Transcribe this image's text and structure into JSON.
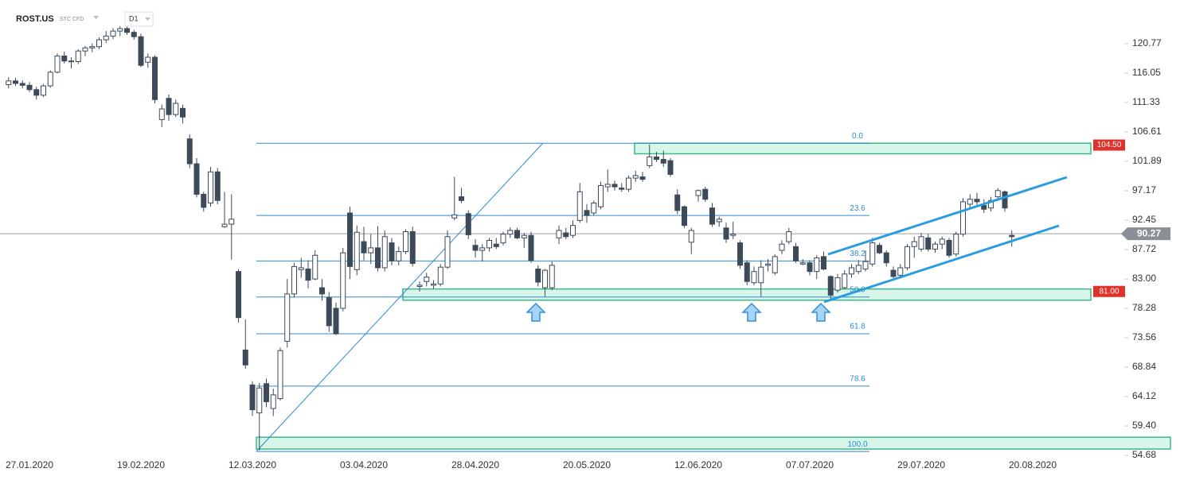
{
  "chart_data": {
    "type": "candlestick",
    "title": "ROST.US",
    "subtitle": "STC CFD",
    "timeframe": "D1",
    "ylim": [
      54.43,
      127.79
    ],
    "yticks": [
      120.77,
      116.05,
      111.33,
      106.61,
      101.89,
      97.17,
      92.45,
      87.72,
      {
        "value": 83,
        "label": "83.00"
      },
      78.28,
      73.56,
      68.84,
      64.12,
      {
        "value": 59.4,
        "label": "59.40"
      },
      54.68
    ],
    "last_price": 90.27,
    "categories": [
      null,
      null,
      null,
      "27.01.2020",
      null,
      null,
      null,
      null,
      null,
      null,
      null,
      null,
      null,
      null,
      null,
      null,
      null,
      null,
      null,
      "19.02.2020",
      null,
      null,
      null,
      null,
      null,
      null,
      null,
      null,
      null,
      null,
      null,
      null,
      null,
      null,
      null,
      "12.03.2020",
      null,
      null,
      null,
      null,
      null,
      null,
      null,
      null,
      null,
      null,
      null,
      null,
      null,
      null,
      null,
      "03.04.2020",
      null,
      null,
      null,
      null,
      null,
      null,
      null,
      null,
      null,
      null,
      null,
      null,
      null,
      null,
      null,
      "28.04.2020",
      null,
      null,
      null,
      null,
      null,
      null,
      null,
      null,
      null,
      null,
      null,
      null,
      null,
      null,
      null,
      "20.05.2020",
      null,
      null,
      null,
      null,
      null,
      null,
      null,
      null,
      null,
      null,
      null,
      null,
      null,
      null,
      null,
      "12.06.2020",
      null,
      null,
      null,
      null,
      null,
      null,
      null,
      null,
      null,
      null,
      null,
      null,
      null,
      null,
      null,
      "07.07.2020",
      null,
      null,
      null,
      null,
      null,
      null,
      null,
      null,
      null,
      null,
      null,
      null,
      null,
      null,
      null,
      "29.07.2020",
      null,
      null,
      null,
      null,
      null,
      null,
      null,
      null,
      null,
      null,
      null,
      null,
      null,
      null,
      null,
      "20.08.2020",
      null
    ],
    "ohlc": [
      [
        114.2,
        115.4,
        113.6,
        114.8
      ],
      [
        114.8,
        115.3,
        114.0,
        114.4
      ],
      [
        114.4,
        114.9,
        113.6,
        114.1
      ],
      [
        114.1,
        114.6,
        113.0,
        113.4
      ],
      [
        113.4,
        113.9,
        111.8,
        112.5
      ],
      [
        112.5,
        114.3,
        112.2,
        114.0
      ],
      [
        114.0,
        116.5,
        113.7,
        116.2
      ],
      [
        116.2,
        119.2,
        116.0,
        118.8
      ],
      [
        118.8,
        119.5,
        117.6,
        118.0
      ],
      [
        118.0,
        118.6,
        116.8,
        117.9
      ],
      [
        117.9,
        119.9,
        117.5,
        119.6
      ],
      [
        119.6,
        120.4,
        118.8,
        120.1
      ],
      [
        120.1,
        120.8,
        119.4,
        120.3
      ],
      [
        120.3,
        121.8,
        119.9,
        121.4
      ],
      [
        121.4,
        122.8,
        120.9,
        122.0
      ],
      [
        122.0,
        123.3,
        121.5,
        122.8
      ],
      [
        122.8,
        123.6,
        122.0,
        123.2
      ],
      [
        123.2,
        123.6,
        122.2,
        122.6
      ],
      [
        122.6,
        123.0,
        121.4,
        121.9
      ],
      [
        121.9,
        122.4,
        117.0,
        117.3
      ],
      [
        117.8,
        119.2,
        116.9,
        118.6
      ],
      [
        118.6,
        118.9,
        111.2,
        111.8
      ],
      [
        108.6,
        111.0,
        107.4,
        110.3
      ],
      [
        112.0,
        112.6,
        108.4,
        109.4
      ],
      [
        109.4,
        111.8,
        109.0,
        111.2
      ],
      [
        110.4,
        111.0,
        108.0,
        109.0
      ],
      [
        105.5,
        106.2,
        100.8,
        101.5
      ],
      [
        101.5,
        102.4,
        96.1,
        96.6
      ],
      [
        96.6,
        97.0,
        93.8,
        94.5
      ],
      [
        95.2,
        101.0,
        94.6,
        100.2
      ],
      [
        100.2,
        100.8,
        95.0,
        95.6
      ],
      [
        91.4,
        97.0,
        91.2,
        91.8
      ],
      [
        91.8,
        96.6,
        86.1,
        92.6
      ],
      [
        84.2,
        84.6,
        76.0,
        76.8
      ],
      [
        71.6,
        76.5,
        68.6,
        69.2
      ],
      [
        66.0,
        66.6,
        61.0,
        62.0
      ],
      [
        61.5,
        66.3,
        55.5,
        65.5
      ],
      [
        66.2,
        67.0,
        62.4,
        63.3
      ],
      [
        62.2,
        65.4,
        61.0,
        64.4
      ],
      [
        63.8,
        72.0,
        63.5,
        71.5
      ],
      [
        73.0,
        83.0,
        72.0,
        80.6
      ],
      [
        80.6,
        85.6,
        80.0,
        85.0
      ],
      [
        84.5,
        86.4,
        83.2,
        84.8
      ],
      [
        84.6,
        86.0,
        81.5,
        82.8
      ],
      [
        83.0,
        87.6,
        82.8,
        86.8
      ],
      [
        81.6,
        83.0,
        79.5,
        80.6
      ],
      [
        80.0,
        80.9,
        74.5,
        75.5
      ],
      [
        78.3,
        79.2,
        74.0,
        74.2
      ],
      [
        78.3,
        88.0,
        77.8,
        87.2
      ],
      [
        93.6,
        94.6,
        83.0,
        85.0
      ],
      [
        84.5,
        91.6,
        83.6,
        90.5
      ],
      [
        89.0,
        91.4,
        86.0,
        87.2
      ],
      [
        87.2,
        90.2,
        85.4,
        88.0
      ],
      [
        88.0,
        91.5,
        84.2,
        84.8
      ],
      [
        84.8,
        90.8,
        84.2,
        89.8
      ],
      [
        88.8,
        89.6,
        85.2,
        85.9
      ],
      [
        85.9,
        88.2,
        85.2,
        87.4
      ],
      [
        87.4,
        91.0,
        87.0,
        90.6
      ],
      [
        90.6,
        91.4,
        85.0,
        85.5
      ],
      [
        81.8,
        82.6,
        81.0,
        82.0
      ],
      [
        82.6,
        84.0,
        81.8,
        83.3
      ],
      [
        82.0,
        82.8,
        81.4,
        82.2
      ],
      [
        82.2,
        85.4,
        81.8,
        84.9
      ],
      [
        84.9,
        90.8,
        84.6,
        89.8
      ],
      [
        92.8,
        99.4,
        92.4,
        93.3
      ],
      [
        96.2,
        97.6,
        95.2,
        95.6
      ],
      [
        93.5,
        94.0,
        89.4,
        90.1
      ],
      [
        88.4,
        89.4,
        86.4,
        87.6
      ],
      [
        87.6,
        88.6,
        85.8,
        88.0
      ],
      [
        88.0,
        89.6,
        87.4,
        89.2
      ],
      [
        88.6,
        89.6,
        87.8,
        88.2
      ],
      [
        88.8,
        90.6,
        88.4,
        90.2
      ],
      [
        90.2,
        91.3,
        89.6,
        90.8
      ],
      [
        90.8,
        91.2,
        89.4,
        89.6
      ],
      [
        89.6,
        90.4,
        88.0,
        90.0
      ],
      [
        90.0,
        90.6,
        85.6,
        86.0
      ],
      [
        84.6,
        85.2,
        81.8,
        82.5
      ],
      [
        81.6,
        84.6,
        80.2,
        84.4
      ],
      [
        81.6,
        85.8,
        81.2,
        85.2
      ],
      [
        89.6,
        91.6,
        88.6,
        90.8
      ],
      [
        90.4,
        91.2,
        89.4,
        89.8
      ],
      [
        90.0,
        92.4,
        89.6,
        91.6
      ],
      [
        92.4,
        98.4,
        92.0,
        97.0
      ],
      [
        94.0,
        95.0,
        92.0,
        93.2
      ],
      [
        93.6,
        95.6,
        93.2,
        95.2
      ],
      [
        94.6,
        98.6,
        94.2,
        98.0
      ],
      [
        97.8,
        100.6,
        97.0,
        98.2
      ],
      [
        98.2,
        98.8,
        97.2,
        97.8
      ],
      [
        97.6,
        98.4,
        97.0,
        97.4
      ],
      [
        97.4,
        99.6,
        97.0,
        99.2
      ],
      [
        99.2,
        100.4,
        98.6,
        99.6
      ],
      [
        99.4,
        100.2,
        98.6,
        99.0
      ],
      [
        101.2,
        104.6,
        100.8,
        102.6
      ],
      [
        102.6,
        103.4,
        101.8,
        102.2
      ],
      [
        102.2,
        103.6,
        101.0,
        101.6
      ],
      [
        102.0,
        102.4,
        99.4,
        99.8
      ],
      [
        96.5,
        97.4,
        93.4,
        94.0
      ],
      [
        94.6,
        94.8,
        91.2,
        91.6
      ],
      [
        88.9,
        91.2,
        87.0,
        90.8
      ],
      [
        96.4,
        97.4,
        95.4,
        97.2
      ],
      [
        97.4,
        97.8,
        95.4,
        95.8
      ],
      [
        94.4,
        95.2,
        91.4,
        91.8
      ],
      [
        92.2,
        93.0,
        91.4,
        92.6
      ],
      [
        91.2,
        92.0,
        88.8,
        89.4
      ],
      [
        90.0,
        92.2,
        89.4,
        90.2
      ],
      [
        88.8,
        89.2,
        84.6,
        85.2
      ],
      [
        85.6,
        86.0,
        82.0,
        82.6
      ],
      [
        82.4,
        85.0,
        82.0,
        84.2
      ],
      [
        82.4,
        86.0,
        80.2,
        84.9
      ],
      [
        85.2,
        86.2,
        84.2,
        85.4
      ],
      [
        84.0,
        87.0,
        83.6,
        86.6
      ],
      [
        87.6,
        89.2,
        87.0,
        88.6
      ],
      [
        89.0,
        91.2,
        88.6,
        90.6
      ],
      [
        88.2,
        88.8,
        85.6,
        85.9
      ],
      [
        85.4,
        86.2,
        85.2,
        85.6
      ],
      [
        85.6,
        86.0,
        83.6,
        84.2
      ],
      [
        84.2,
        86.8,
        83.0,
        86.4
      ],
      [
        86.6,
        87.4,
        84.4,
        84.6
      ],
      [
        83.4,
        83.6,
        79.6,
        80.4
      ],
      [
        81.2,
        83.8,
        80.8,
        83.2
      ],
      [
        81.6,
        84.4,
        81.4,
        83.8
      ],
      [
        83.8,
        85.4,
        83.2,
        84.8
      ],
      [
        84.2,
        86.0,
        83.8,
        85.2
      ],
      [
        84.6,
        87.6,
        84.2,
        85.8
      ],
      [
        85.4,
        89.6,
        85.0,
        88.8
      ],
      [
        88.4,
        88.8,
        87.0,
        87.2
      ],
      [
        87.2,
        87.6,
        85.0,
        85.6
      ],
      [
        84.4,
        85.0,
        82.8,
        83.4
      ],
      [
        83.6,
        85.4,
        83.2,
        84.8
      ],
      [
        84.8,
        88.6,
        84.4,
        88.2
      ],
      [
        88.2,
        89.8,
        86.4,
        89.0
      ],
      [
        87.8,
        90.4,
        87.4,
        89.8
      ],
      [
        89.6,
        90.2,
        87.4,
        87.8
      ],
      [
        87.8,
        89.0,
        87.2,
        88.6
      ],
      [
        88.6,
        89.8,
        87.8,
        89.4
      ],
      [
        89.2,
        89.6,
        86.4,
        86.8
      ],
      [
        87.0,
        90.6,
        86.6,
        90.2
      ],
      [
        90.2,
        96.0,
        89.8,
        95.4
      ],
      [
        95.0,
        96.6,
        94.2,
        95.8
      ],
      [
        95.8,
        96.8,
        94.8,
        95.4
      ],
      [
        94.8,
        95.8,
        93.6,
        94.2
      ],
      [
        94.4,
        96.2,
        93.8,
        95.6
      ],
      [
        96.2,
        97.6,
        95.8,
        97.2
      ],
      [
        97.0,
        97.2,
        93.8,
        94.4
      ],
      [
        90.0,
        90.8,
        88.2,
        89.8
      ],
      null,
      null,
      null,
      null
    ],
    "fibonacci": [
      {
        "label": "0.0",
        "value": 104.8
      },
      {
        "label": "23.6",
        "value": 93.2
      },
      {
        "label": "38.2",
        "value": 85.9
      },
      {
        "label": "50.0",
        "value": 80.1
      },
      {
        "label": "61.8",
        "value": 74.2
      },
      {
        "label": "78.6",
        "value": 65.8
      },
      {
        "label": "100.0",
        "value": 55.3
      }
    ],
    "zones": [
      {
        "high": 104.8,
        "low": 103.1,
        "marker": {
          "value": 104.5,
          "label": "104.50"
        }
      },
      {
        "high": 81.4,
        "low": 79.6,
        "marker": {
          "value": 81,
          "label": "81.00"
        }
      },
      {
        "high": 57.6,
        "low": 55.7
      }
    ]
  }
}
